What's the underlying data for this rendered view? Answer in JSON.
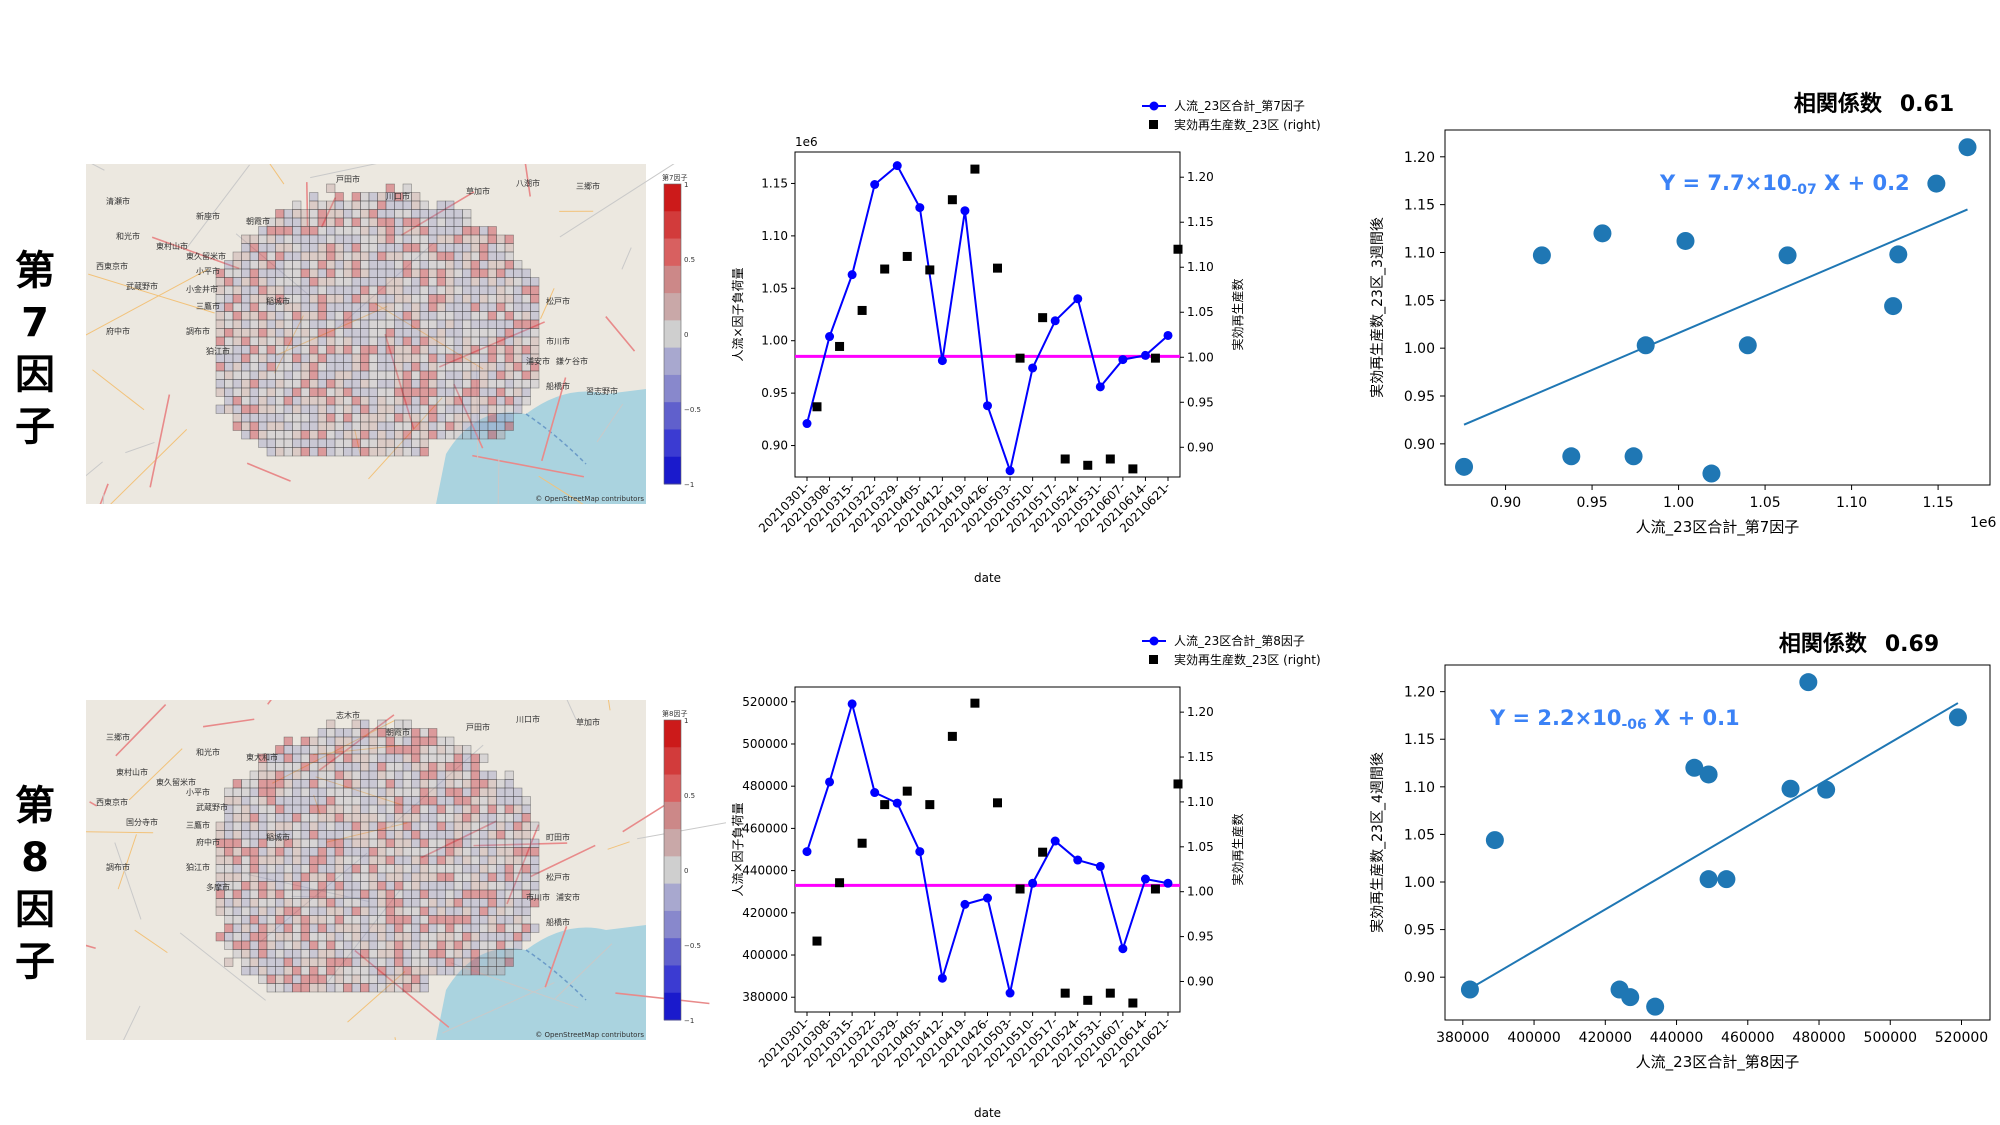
{
  "rows": [
    {
      "label": "第\n7\n因\n子",
      "map": {
        "colorbar_title": "第7因子",
        "colorbar_ticks": [
          "1",
          "0.5",
          "0",
          "−0.5",
          "−1"
        ],
        "attribution": "© OpenStreetMap contributors",
        "place_labels": [
          "戸田市",
          "川口市",
          "草加市",
          "八潮市",
          "三郷市",
          "清瀬市",
          "新座市",
          "朝霞市",
          "和光市",
          "東村山市",
          "東久留米市",
          "西東京市",
          "小平市",
          "武蔵野市",
          "小金井市",
          "三鷹市",
          "府中市",
          "調布市",
          "狛江市",
          "稲城市",
          "松戸市",
          "市川市",
          "浦安市",
          "鎌ケ谷市",
          "船橋市",
          "習志野市"
        ]
      },
      "chart_data": {
        "type": "line",
        "title": "",
        "xlabel": "date",
        "ylabel": "人流×因子負荷量",
        "y2label": "実効再生産数",
        "offset_label": "1e6",
        "categories": [
          "20210301-",
          "20210308-",
          "20210315-",
          "20210322-",
          "20210329-",
          "20210405-",
          "20210412-",
          "20210419-",
          "20210426-",
          "20210503-",
          "20210510-",
          "20210517-",
          "20210524-",
          "20210531-",
          "20210607-",
          "20210614-",
          "20210621-"
        ],
        "yticks": [
          "0.90",
          "0.95",
          "1.00",
          "1.05",
          "1.10",
          "1.15"
        ],
        "ylim": [
          0.87,
          1.18
        ],
        "y2ticks": [
          "0.90",
          "0.95",
          "1.00",
          "1.05",
          "1.10",
          "1.15",
          "1.20"
        ],
        "y2lim": [
          0.867,
          1.228
        ],
        "reference_line": 0.985,
        "series": [
          {
            "name": "人流_23区合計_第7因子",
            "axis": "left",
            "style": "line-marker",
            "color": "#0000ff",
            "values": [
              0.921,
              1.004,
              1.063,
              1.149,
              1.167,
              1.127,
              0.981,
              1.124,
              0.938,
              0.876,
              0.974,
              1.019,
              1.04,
              0.956,
              0.982,
              0.986,
              1.005
            ]
          },
          {
            "name": "実効再生産数_23区 (right)",
            "axis": "right",
            "style": "square",
            "color": "#000000",
            "values": [
              0.945,
              1.012,
              1.052,
              1.098,
              1.112,
              1.097,
              1.175,
              1.209,
              1.099,
              0.999,
              1.044,
              0.887,
              0.88,
              0.887,
              0.876,
              0.999,
              1.12
            ]
          }
        ]
      },
      "scatter": {
        "correlation_label": "相関係数",
        "correlation_value": "0.61",
        "equation": "Y = 7.7×10-07 X + 0.2",
        "xlabel": "人流_23区合計_第7因子",
        "ylabel": "実効再生産数_23区_3週間後",
        "offset_label": "1e6",
        "xticks": [
          "0.90",
          "0.95",
          "1.00",
          "1.05",
          "1.10",
          "1.15"
        ],
        "xlim": [
          0.865,
          1.18
        ],
        "yticks": [
          "0.90",
          "0.95",
          "1.00",
          "1.05",
          "1.10",
          "1.15",
          "1.20"
        ],
        "ylim": [
          0.857,
          1.228
        ],
        "fit": [
          [
            0.876,
            0.92
          ],
          [
            1.167,
            1.145
          ]
        ],
        "points": [
          [
            0.876,
            0.876
          ],
          [
            0.921,
            1.097
          ],
          [
            0.938,
            0.887
          ],
          [
            0.956,
            1.12
          ],
          [
            0.974,
            0.887
          ],
          [
            0.981,
            1.003
          ],
          [
            1.004,
            1.112
          ],
          [
            1.019,
            0.869
          ],
          [
            1.04,
            1.003
          ],
          [
            1.063,
            1.097
          ],
          [
            1.124,
            1.044
          ],
          [
            1.127,
            1.098
          ],
          [
            1.149,
            1.172
          ],
          [
            1.167,
            1.21
          ]
        ]
      }
    },
    {
      "label": "第\n8\n因\n子",
      "map": {
        "colorbar_title": "第8因子",
        "colorbar_ticks": [
          "1",
          "0.5",
          "0",
          "−0.5",
          "−1"
        ],
        "attribution": "© OpenStreetMap contributors",
        "place_labels": [
          "志木市",
          "朝霞市",
          "戸田市",
          "川口市",
          "草加市",
          "三郷市",
          "和光市",
          "東大和市",
          "東村山市",
          "東久留米市",
          "小平市",
          "西東京市",
          "武蔵野市",
          "国分寺市",
          "三鷹市",
          "府中市",
          "調布市",
          "狛江市",
          "多摩市",
          "稲城市",
          "町田市",
          "松戸市",
          "市川市",
          "浦安市",
          "船橋市"
        ]
      },
      "chart_data": {
        "type": "line",
        "title": "",
        "xlabel": "date",
        "ylabel": "人流×因子負荷量",
        "y2label": "実効再生産数",
        "offset_label": "",
        "categories": [
          "20210301-",
          "20210308-",
          "20210315-",
          "20210322-",
          "20210329-",
          "20210405-",
          "20210412-",
          "20210419-",
          "20210426-",
          "20210503-",
          "20210510-",
          "20210517-",
          "20210524-",
          "20210531-",
          "20210607-",
          "20210614-",
          "20210621-"
        ],
        "yticks": [
          "380000",
          "400000",
          "420000",
          "440000",
          "460000",
          "480000",
          "500000",
          "520000"
        ],
        "ylim": [
          373000,
          527000
        ],
        "y2ticks": [
          "0.90",
          "0.95",
          "1.00",
          "1.05",
          "1.10",
          "1.15",
          "1.20"
        ],
        "y2lim": [
          0.866,
          1.228
        ],
        "reference_line": 433000,
        "series": [
          {
            "name": "人流_23区合計_第8因子",
            "axis": "left",
            "style": "line-marker",
            "color": "#0000ff",
            "values": [
              449000,
              482000,
              519000,
              477000,
              472000,
              449000,
              389000,
              424000,
              427000,
              382000,
              434000,
              454000,
              445000,
              442000,
              403000,
              436000,
              434000
            ]
          },
          {
            "name": "実効再生産数_23区 (right)",
            "axis": "right",
            "style": "square",
            "color": "#000000",
            "values": [
              0.945,
              1.01,
              1.054,
              1.097,
              1.112,
              1.097,
              1.173,
              1.21,
              1.099,
              1.003,
              1.044,
              0.887,
              0.879,
              0.887,
              0.876,
              1.003,
              1.12
            ]
          }
        ]
      },
      "scatter": {
        "correlation_label": "相関係数",
        "correlation_value": "0.69",
        "equation": "Y = 2.2×10-06 X + 0.1",
        "xlabel": "人流_23区合計_第8因子",
        "ylabel": "実効再生産数_23区_4週間後",
        "offset_label": "",
        "xticks": [
          "380000",
          "400000",
          "420000",
          "440000",
          "460000",
          "480000",
          "500000",
          "520000"
        ],
        "xlim": [
          375000,
          528000
        ],
        "yticks": [
          "0.90",
          "0.95",
          "1.00",
          "1.05",
          "1.10",
          "1.15",
          "1.20"
        ],
        "ylim": [
          0.855,
          1.228
        ],
        "fit": [
          [
            382000,
            0.888
          ],
          [
            519000,
            1.188
          ]
        ],
        "points": [
          [
            382000,
            0.887
          ],
          [
            389000,
            1.044
          ],
          [
            424000,
            0.887
          ],
          [
            427000,
            0.879
          ],
          [
            434000,
            0.869
          ],
          [
            445000,
            1.12
          ],
          [
            449000,
            1.113
          ],
          [
            449000,
            1.003
          ],
          [
            454000,
            1.003
          ],
          [
            472000,
            1.098
          ],
          [
            477000,
            1.21
          ],
          [
            482000,
            1.097
          ],
          [
            519000,
            1.173
          ]
        ]
      }
    }
  ]
}
